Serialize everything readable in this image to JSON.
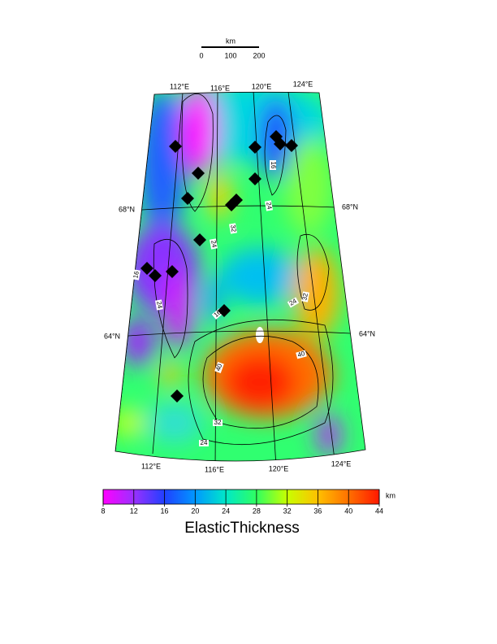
{
  "scale_bar": {
    "unit": "km",
    "labels": [
      "0",
      "100",
      "200"
    ]
  },
  "map": {
    "top_lon_labels": [
      "112°E",
      "116°E",
      "120°E",
      "124°E"
    ],
    "bottom_lon_labels": [
      "112°E",
      "116°E",
      "120°E",
      "124°E"
    ],
    "left_lat_labels": [
      "68°N",
      "64°N"
    ],
    "right_lat_labels": [
      "68°N",
      "64°N"
    ],
    "contour_labels": [
      16,
      24,
      32,
      24,
      16,
      24,
      32,
      24,
      16,
      40,
      40,
      32,
      24
    ]
  },
  "colorbar": {
    "ticks": [
      8,
      12,
      16,
      20,
      24,
      28,
      32,
      36,
      40,
      44
    ],
    "lim": [
      8,
      44
    ],
    "colors": [
      "#ff00ff",
      "#9a30ff",
      "#2040ff",
      "#0098ff",
      "#00e8c8",
      "#30ff60",
      "#c8ff00",
      "#ffc000",
      "#ff7000",
      "#ff1800"
    ],
    "unit": "km",
    "title": "ElasticThickness"
  }
}
